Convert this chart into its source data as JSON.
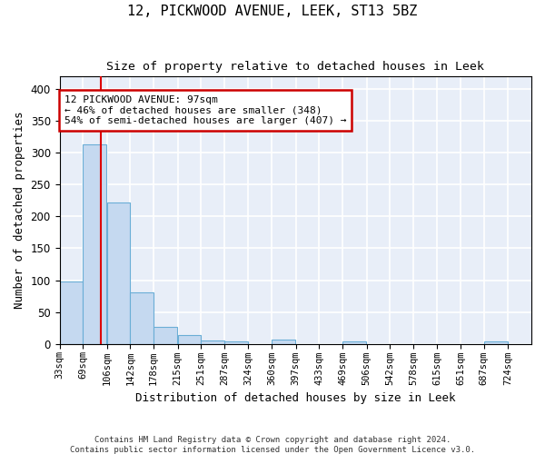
{
  "title": "12, PICKWOOD AVENUE, LEEK, ST13 5BZ",
  "subtitle": "Size of property relative to detached houses in Leek",
  "xlabel": "Distribution of detached houses by size in Leek",
  "ylabel": "Number of detached properties",
  "property_size": 97,
  "property_label": "12 PICKWOOD AVENUE: 97sqm",
  "annotation_line1": "← 46% of detached houses are smaller (348)",
  "annotation_line2": "54% of semi-detached houses are larger (407) →",
  "bar_color": "#c5d9f0",
  "bar_edge_color": "#6aaed6",
  "red_line_color": "#dd0000",
  "annotation_box_color": "#ffffff",
  "annotation_box_edge": "#cc0000",
  "background_color": "#e8eef8",
  "grid_color": "#ffffff",
  "bins": [
    33,
    69,
    106,
    142,
    178,
    215,
    251,
    287,
    324,
    360,
    397,
    433,
    469,
    506,
    542,
    578,
    615,
    651,
    687,
    724,
    760
  ],
  "counts": [
    98,
    314,
    222,
    81,
    27,
    14,
    5,
    4,
    0,
    6,
    0,
    0,
    4,
    0,
    0,
    0,
    0,
    0,
    4,
    0
  ],
  "ylim": [
    0,
    420
  ],
  "yticks": [
    0,
    50,
    100,
    150,
    200,
    250,
    300,
    350,
    400
  ],
  "footnote1": "Contains HM Land Registry data © Crown copyright and database right 2024.",
  "footnote2": "Contains public sector information licensed under the Open Government Licence v3.0."
}
